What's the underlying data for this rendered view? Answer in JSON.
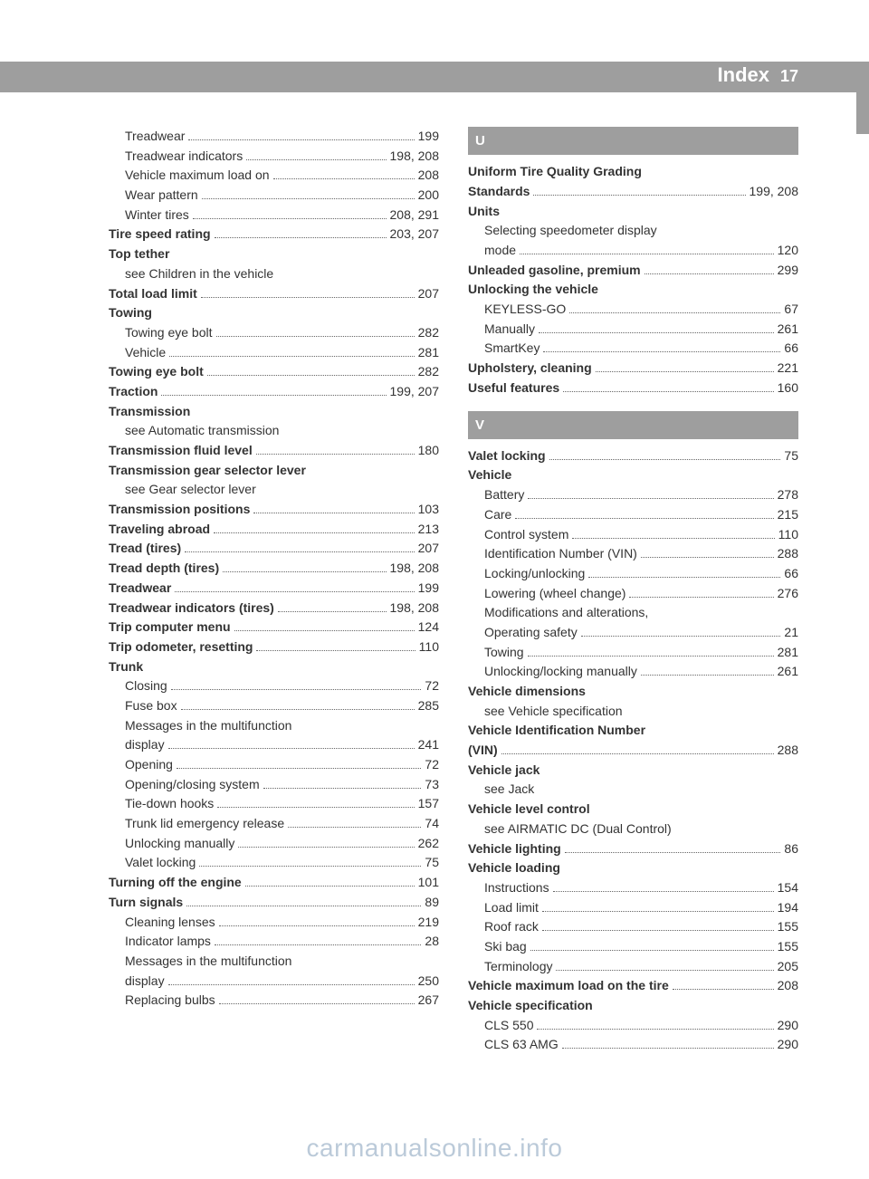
{
  "header": {
    "title": "Index",
    "page": "17"
  },
  "left": [
    {
      "label": "Treadwear",
      "pages": "199",
      "sub": true
    },
    {
      "label": "Treadwear indicators",
      "pages": "198, 208",
      "sub": true
    },
    {
      "label": "Vehicle maximum load on",
      "pages": "208",
      "sub": true
    },
    {
      "label": "Wear pattern",
      "pages": "200",
      "sub": true
    },
    {
      "label": "Winter tires",
      "pages": "208, 291",
      "sub": true
    },
    {
      "label": "Tire speed rating",
      "pages": "203, 207",
      "bold": true
    },
    {
      "label": "Top tether",
      "bold": true,
      "nopage": true
    },
    {
      "label": "see Children in the vehicle",
      "sub": true,
      "nopage": true
    },
    {
      "label": "Total load limit",
      "pages": "207",
      "bold": true
    },
    {
      "label": "Towing",
      "bold": true,
      "nopage": true
    },
    {
      "label": "Towing eye bolt",
      "pages": "282",
      "sub": true
    },
    {
      "label": "Vehicle",
      "pages": "281",
      "sub": true
    },
    {
      "label": "Towing eye bolt",
      "pages": "282",
      "bold": true
    },
    {
      "label": "Traction",
      "pages": "199, 207",
      "bold": true
    },
    {
      "label": "Transmission",
      "bold": true,
      "nopage": true
    },
    {
      "label": "see Automatic transmission",
      "sub": true,
      "nopage": true
    },
    {
      "label": "Transmission fluid level",
      "pages": "180",
      "bold": true
    },
    {
      "label": "Transmission gear selector lever",
      "bold": true,
      "nopage": true
    },
    {
      "label": "see Gear selector lever",
      "sub": true,
      "nopage": true
    },
    {
      "label": "Transmission positions",
      "pages": "103",
      "bold": true
    },
    {
      "label": "Traveling abroad",
      "pages": "213",
      "bold": true
    },
    {
      "label": "Tread (tires)",
      "pages": "207",
      "bold": true
    },
    {
      "label": "Tread depth (tires)",
      "pages": "198, 208",
      "bold": true
    },
    {
      "label": "Treadwear",
      "pages": "199",
      "bold": true
    },
    {
      "label": "Treadwear indicators (tires)",
      "pages": "198, 208",
      "bold": true
    },
    {
      "label": "Trip computer menu",
      "pages": "124",
      "bold": true
    },
    {
      "label": "Trip odometer, resetting",
      "pages": "110",
      "bold": true
    },
    {
      "label": "Trunk",
      "bold": true,
      "nopage": true
    },
    {
      "label": "Closing",
      "pages": "72",
      "sub": true
    },
    {
      "label": "Fuse box",
      "pages": "285",
      "sub": true
    },
    {
      "label": "Messages in the multifunction",
      "sub": true,
      "nopage": true
    },
    {
      "label": "display",
      "pages": "241",
      "sub": true
    },
    {
      "label": "Opening",
      "pages": "72",
      "sub": true
    },
    {
      "label": "Opening/closing system",
      "pages": "73",
      "sub": true
    },
    {
      "label": "Tie-down hooks",
      "pages": "157",
      "sub": true
    },
    {
      "label": "Trunk lid emergency release",
      "pages": "74",
      "sub": true
    },
    {
      "label": "Unlocking manually",
      "pages": "262",
      "sub": true
    },
    {
      "label": "Valet locking",
      "pages": "75",
      "sub": true
    },
    {
      "label": "Turning off the engine",
      "pages": "101",
      "bold": true
    },
    {
      "label": "Turn signals",
      "pages": "89",
      "bold": true
    },
    {
      "label": "Cleaning lenses",
      "pages": "219",
      "sub": true
    },
    {
      "label": "Indicator lamps",
      "pages": "28",
      "sub": true
    },
    {
      "label": "Messages in the multifunction",
      "sub": true,
      "nopage": true
    },
    {
      "label": "display",
      "pages": "250",
      "sub": true
    },
    {
      "label": "Replacing bulbs",
      "pages": "267",
      "sub": true
    }
  ],
  "right": [
    {
      "section": "U"
    },
    {
      "label": "Uniform Tire Quality Grading",
      "bold": true,
      "nopage": true
    },
    {
      "label": "Standards",
      "pages": "199, 208",
      "bold": true
    },
    {
      "label": "Units",
      "bold": true,
      "nopage": true
    },
    {
      "label": "Selecting speedometer display",
      "sub": true,
      "nopage": true
    },
    {
      "label": "mode",
      "pages": "120",
      "sub": true
    },
    {
      "label": "Unleaded gasoline, premium",
      "pages": "299",
      "bold": true
    },
    {
      "label": "Unlocking the vehicle",
      "bold": true,
      "nopage": true
    },
    {
      "label": "KEYLESS-GO",
      "pages": "67",
      "sub": true
    },
    {
      "label": "Manually",
      "pages": "261",
      "sub": true
    },
    {
      "label": "SmartKey",
      "pages": "66",
      "sub": true
    },
    {
      "label": "Upholstery, cleaning",
      "pages": "221",
      "bold": true
    },
    {
      "label": "Useful features",
      "pages": "160",
      "bold": true
    },
    {
      "section": "V"
    },
    {
      "label": "Valet locking",
      "pages": "75",
      "bold": true
    },
    {
      "label": "Vehicle",
      "bold": true,
      "nopage": true
    },
    {
      "label": "Battery",
      "pages": "278",
      "sub": true
    },
    {
      "label": "Care",
      "pages": "215",
      "sub": true
    },
    {
      "label": "Control system",
      "pages": "110",
      "sub": true
    },
    {
      "label": "Identification Number (VIN)",
      "pages": "288",
      "sub": true
    },
    {
      "label": "Locking/unlocking",
      "pages": "66",
      "sub": true
    },
    {
      "label": "Lowering (wheel change)",
      "pages": "276",
      "sub": true
    },
    {
      "label": "Modifications and alterations,",
      "sub": true,
      "nopage": true
    },
    {
      "label": "Operating safety",
      "pages": "21",
      "sub": true
    },
    {
      "label": "Towing",
      "pages": "281",
      "sub": true
    },
    {
      "label": "Unlocking/locking manually",
      "pages": "261",
      "sub": true
    },
    {
      "label": "Vehicle dimensions",
      "bold": true,
      "nopage": true
    },
    {
      "label": "see Vehicle specification",
      "sub": true,
      "nopage": true
    },
    {
      "label": "Vehicle Identification Number",
      "bold": true,
      "nopage": true
    },
    {
      "label": "(VIN)",
      "pages": "288",
      "bold": true
    },
    {
      "label": "Vehicle jack",
      "bold": true,
      "nopage": true
    },
    {
      "label": "see Jack",
      "sub": true,
      "nopage": true
    },
    {
      "label": "Vehicle level control",
      "bold": true,
      "nopage": true
    },
    {
      "label": "see AIRMATIC DC (Dual Control)",
      "sub": true,
      "nopage": true
    },
    {
      "label": "Vehicle lighting",
      "pages": "86",
      "bold": true
    },
    {
      "label": "Vehicle loading",
      "bold": true,
      "nopage": true
    },
    {
      "label": "Instructions",
      "pages": "154",
      "sub": true
    },
    {
      "label": "Load limit",
      "pages": "194",
      "sub": true
    },
    {
      "label": "Roof rack",
      "pages": "155",
      "sub": true
    },
    {
      "label": "Ski bag",
      "pages": "155",
      "sub": true
    },
    {
      "label": "Terminology",
      "pages": "205",
      "sub": true
    },
    {
      "label": "Vehicle maximum load on the tire",
      "pages": "208",
      "bold": true
    },
    {
      "label": "Vehicle specification",
      "bold": true,
      "nopage": true
    },
    {
      "label": "CLS 550",
      "pages": "290",
      "sub": true
    },
    {
      "label": "CLS 63 AMG",
      "pages": "290",
      "sub": true
    }
  ],
  "watermark": "carmanualsonline.info"
}
